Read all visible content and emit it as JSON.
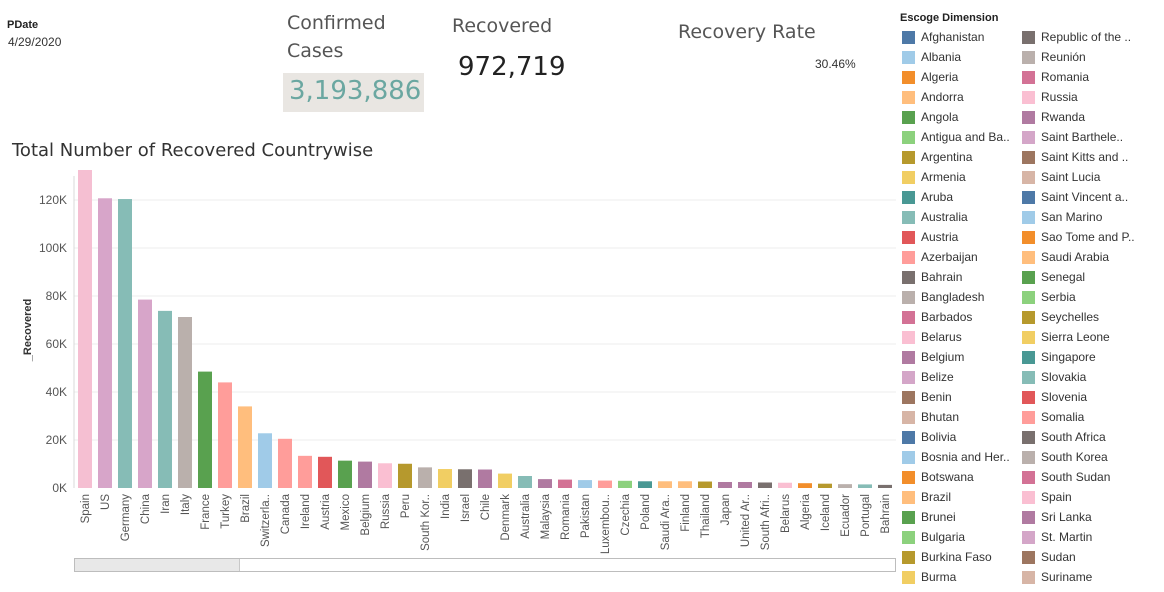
{
  "filter": {
    "title": "PDate",
    "value": "4/29/2020"
  },
  "kpis": {
    "confirmed": {
      "title": "Confirmed Cases",
      "value": "3,193,886"
    },
    "recovered": {
      "title": "Recovered",
      "value": "972,719"
    },
    "rate": {
      "title": "Recovery Rate",
      "value": "30.46%"
    }
  },
  "chart_data": {
    "type": "bar",
    "title": "Total Number of Recovered Countrywise",
    "ylabel": "_Recovered",
    "xlabel": "",
    "ylim": [
      0,
      130000
    ],
    "yticks": [
      0,
      20000,
      40000,
      60000,
      80000,
      100000,
      120000
    ],
    "ytick_labels": [
      "0K",
      "20K",
      "40K",
      "60K",
      "80K",
      "100K",
      "120K"
    ],
    "categories": [
      "Spain",
      "US",
      "Germany",
      "China",
      "Iran",
      "Italy",
      "France",
      "Turkey",
      "Brazil",
      "Switzerla..",
      "Canada",
      "Ireland",
      "Austria",
      "Mexico",
      "Belgium",
      "Russia",
      "Peru",
      "South Kor..",
      "India",
      "Israel",
      "Chile",
      "Denmark",
      "Australia",
      "Malaysia",
      "Romania",
      "Pakistan",
      "Luxembou..",
      "Czechia",
      "Poland",
      "Saudi Ara..",
      "Finland",
      "Thailand",
      "Japan",
      "United Ar..",
      "South Afri..",
      "Belarus",
      "Algeria",
      "Iceland",
      "Ecuador",
      "Portugal",
      "Bahrain"
    ],
    "values": [
      132929,
      120720,
      120400,
      78500,
      73800,
      71250,
      48500,
      44000,
      34000,
      22800,
      20500,
      13400,
      13000,
      11400,
      11000,
      10300,
      10100,
      8600,
      7900,
      7800,
      7700,
      6000,
      5000,
      3700,
      3500,
      3300,
      3100,
      3000,
      2800,
      2800,
      2800,
      2700,
      2500,
      2500,
      2300,
      2200,
      2000,
      1800,
      1600,
      1500,
      1300
    ],
    "colors": [
      "#f5bfd2",
      "#d7a5c9",
      "#86bcb6",
      "#d7a5c9",
      "#86bcb6",
      "#bab0ac",
      "#59a14f",
      "#ff9d9a",
      "#ffbe7d",
      "#a0cbe8",
      "#ff9d9a",
      "#ff9d9a",
      "#e15759",
      "#59a14f",
      "#b07aa1",
      "#fabfd2",
      "#b6992d",
      "#bab0ac",
      "#f1ce63",
      "#79706e",
      "#b07aa1",
      "#f1ce63",
      "#86bcb6",
      "#b07aa1",
      "#d37295",
      "#a0cbe8",
      "#ff9d9a",
      "#8cd17d",
      "#499894",
      "#ffbe7d",
      "#ffbe7d",
      "#b6992d",
      "#b07aa1",
      "#b07aa1",
      "#79706e",
      "#fabfd2",
      "#f28e2b",
      "#b6992d",
      "#bab0ac",
      "#86bcb6",
      "#79706e"
    ],
    "grid": true,
    "legend": {
      "title": "Escoge Dimension",
      "placement": "right",
      "items": [
        {
          "label": "Afghanistan",
          "color": "#4e79a7"
        },
        {
          "label": "Albania",
          "color": "#a0cbe8"
        },
        {
          "label": "Algeria",
          "color": "#f28e2b"
        },
        {
          "label": "Andorra",
          "color": "#ffbe7d"
        },
        {
          "label": "Angola",
          "color": "#59a14f"
        },
        {
          "label": "Antigua and Ba..",
          "color": "#8cd17d"
        },
        {
          "label": "Argentina",
          "color": "#b6992d"
        },
        {
          "label": "Armenia",
          "color": "#f1ce63"
        },
        {
          "label": "Aruba",
          "color": "#499894"
        },
        {
          "label": "Australia",
          "color": "#86bcb6"
        },
        {
          "label": "Austria",
          "color": "#e15759"
        },
        {
          "label": "Azerbaijan",
          "color": "#ff9d9a"
        },
        {
          "label": "Bahrain",
          "color": "#79706e"
        },
        {
          "label": "Bangladesh",
          "color": "#bab0ac"
        },
        {
          "label": "Barbados",
          "color": "#d37295"
        },
        {
          "label": "Belarus",
          "color": "#fabfd2"
        },
        {
          "label": "Belgium",
          "color": "#b07aa1"
        },
        {
          "label": "Belize",
          "color": "#d4a6c8"
        },
        {
          "label": "Benin",
          "color": "#9d7660"
        },
        {
          "label": "Bhutan",
          "color": "#d7b5a6"
        },
        {
          "label": "Bolivia",
          "color": "#4e79a7"
        },
        {
          "label": "Bosnia and Her..",
          "color": "#a0cbe8"
        },
        {
          "label": "Botswana",
          "color": "#f28e2b"
        },
        {
          "label": "Brazil",
          "color": "#ffbe7d"
        },
        {
          "label": "Brunei",
          "color": "#59a14f"
        },
        {
          "label": "Bulgaria",
          "color": "#8cd17d"
        },
        {
          "label": "Burkina Faso",
          "color": "#b6992d"
        },
        {
          "label": "Burma",
          "color": "#f1ce63"
        },
        {
          "label": "Republic of the ..",
          "color": "#79706e"
        },
        {
          "label": "Reunión",
          "color": "#bab0ac"
        },
        {
          "label": "Romania",
          "color": "#d37295"
        },
        {
          "label": "Russia",
          "color": "#fabfd2"
        },
        {
          "label": "Rwanda",
          "color": "#b07aa1"
        },
        {
          "label": "Saint Barthele..",
          "color": "#d4a6c8"
        },
        {
          "label": "Saint Kitts and ..",
          "color": "#9d7660"
        },
        {
          "label": "Saint Lucia",
          "color": "#d7b5a6"
        },
        {
          "label": "Saint Vincent a..",
          "color": "#4e79a7"
        },
        {
          "label": "San Marino",
          "color": "#a0cbe8"
        },
        {
          "label": "Sao Tome and P..",
          "color": "#f28e2b"
        },
        {
          "label": "Saudi Arabia",
          "color": "#ffbe7d"
        },
        {
          "label": "Senegal",
          "color": "#59a14f"
        },
        {
          "label": "Serbia",
          "color": "#8cd17d"
        },
        {
          "label": "Seychelles",
          "color": "#b6992d"
        },
        {
          "label": "Sierra Leone",
          "color": "#f1ce63"
        },
        {
          "label": "Singapore",
          "color": "#499894"
        },
        {
          "label": "Slovakia",
          "color": "#86bcb6"
        },
        {
          "label": "Slovenia",
          "color": "#e15759"
        },
        {
          "label": "Somalia",
          "color": "#ff9d9a"
        },
        {
          "label": "South Africa",
          "color": "#79706e"
        },
        {
          "label": "South Korea",
          "color": "#bab0ac"
        },
        {
          "label": "South Sudan",
          "color": "#d37295"
        },
        {
          "label": "Spain",
          "color": "#fabfd2"
        },
        {
          "label": "Sri Lanka",
          "color": "#b07aa1"
        },
        {
          "label": "St. Martin",
          "color": "#d4a6c8"
        },
        {
          "label": "Sudan",
          "color": "#9d7660"
        },
        {
          "label": "Suriname",
          "color": "#d7b5a6"
        }
      ]
    }
  }
}
